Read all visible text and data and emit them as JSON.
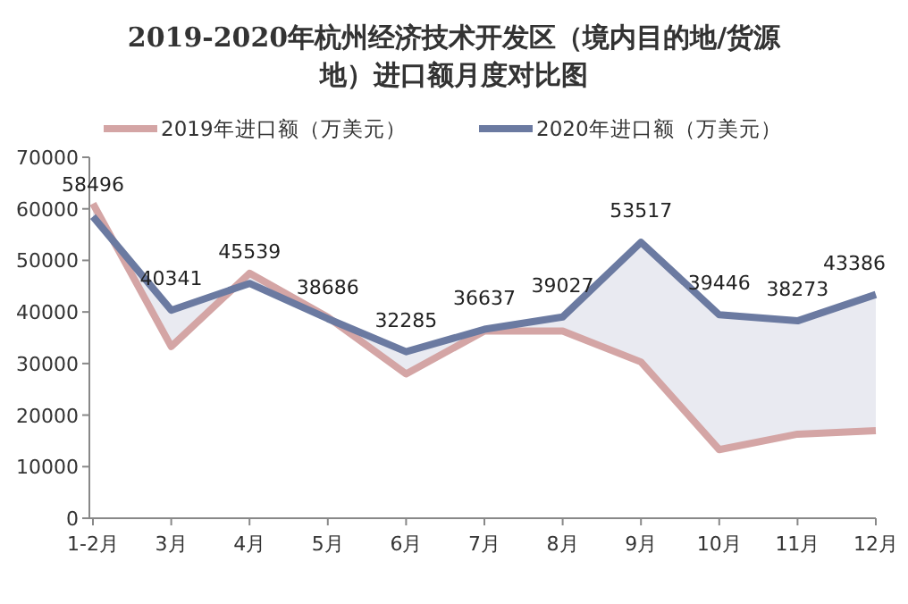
{
  "chart_data": {
    "type": "line",
    "title": "2019-2020年杭州经济技术开发区（境内目的地/货源地）进口额月度对比图",
    "categories": [
      "1-2月",
      "3月",
      "4月",
      "5月",
      "6月",
      "7月",
      "8月",
      "9月",
      "10月",
      "11月",
      "12月"
    ],
    "series": [
      {
        "name": "2019年进口额（万美元）",
        "color": "#d4a5a5",
        "values": [
          61000,
          33300,
          47500,
          39000,
          28000,
          36300,
          36300,
          30300,
          13300,
          16300,
          17000
        ]
      },
      {
        "name": "2020年进口额（万美元）",
        "color": "#6b7aa1",
        "values": [
          58496,
          40341,
          45539,
          38686,
          32285,
          36637,
          39027,
          53517,
          39446,
          38273,
          43386
        ],
        "value_labels": [
          "58496",
          "40341",
          "45539",
          "38686",
          "32285",
          "36637",
          "39027",
          "53517",
          "39446",
          "38273",
          "43386"
        ],
        "lower": [
          61000,
          33300,
          47500,
          39000,
          28000,
          36300,
          36300,
          30300,
          13300,
          16300,
          17000
        ],
        "upper": [
          58496,
          40341,
          45539,
          38686,
          32285,
          36637,
          39027,
          53517,
          39446,
          38273,
          43386
        ]
      }
    ],
    "ylim": [
      0,
      70000
    ],
    "yticks": [
      0,
      10000,
      20000,
      30000,
      40000,
      50000,
      60000,
      70000
    ],
    "legend": "top",
    "grid": false,
    "line_style": "solid"
  }
}
